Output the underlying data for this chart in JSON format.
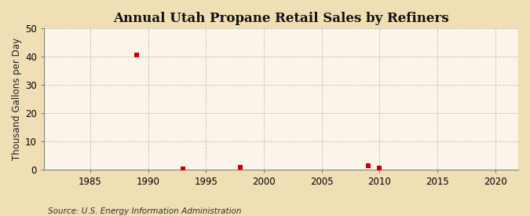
{
  "title": "Annual Utah Propane Retail Sales by Refiners",
  "ylabel": "Thousand Gallons per Day",
  "source": "Source: U.S. Energy Information Administration",
  "outer_bg_color": "#f0deb4",
  "plot_bg_color": "#faf5e8",
  "data_points": [
    {
      "year": 1989,
      "value": 40.6
    },
    {
      "year": 1993,
      "value": 0.2
    },
    {
      "year": 1998,
      "value": 0.9
    },
    {
      "year": 2009,
      "value": 1.3
    },
    {
      "year": 2010,
      "value": 0.5
    }
  ],
  "marker_color": "#cc0000",
  "marker_size": 18,
  "marker_style": "s",
  "xlim": [
    1981,
    2022
  ],
  "ylim": [
    0,
    50
  ],
  "xticks": [
    1985,
    1990,
    1995,
    2000,
    2005,
    2010,
    2015,
    2020
  ],
  "yticks": [
    0,
    10,
    20,
    30,
    40,
    50
  ],
  "grid_color": "#999999",
  "grid_style": "--",
  "grid_alpha": 0.6,
  "grid_linewidth": 0.6,
  "title_fontsize": 12,
  "label_fontsize": 8.5,
  "tick_fontsize": 8.5,
  "source_fontsize": 7.5
}
